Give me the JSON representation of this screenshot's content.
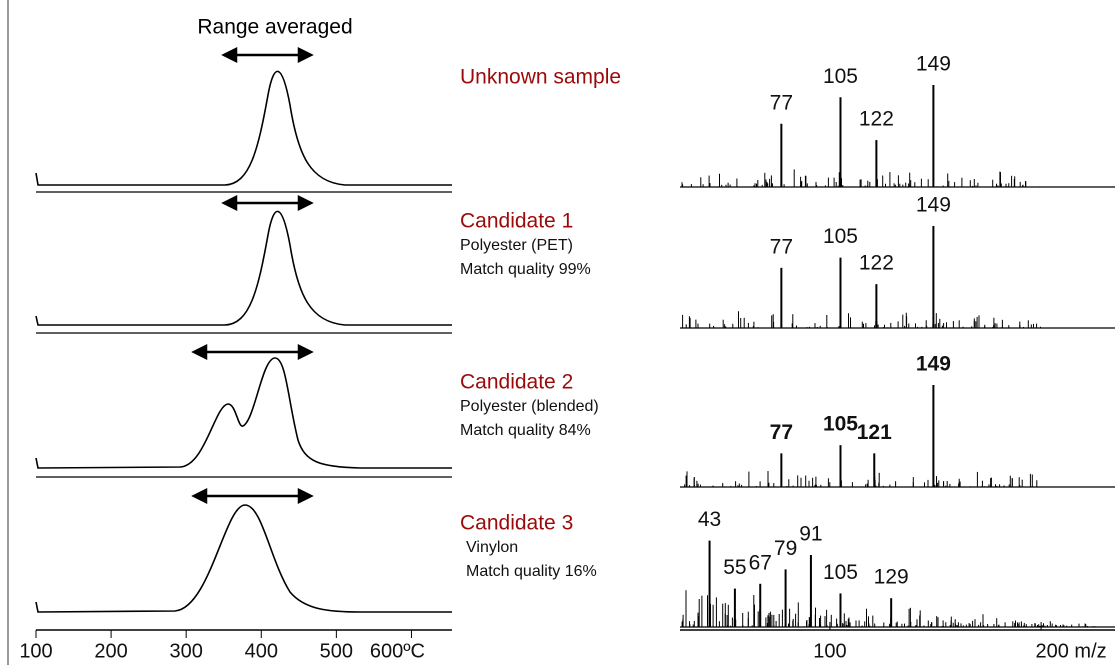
{
  "thermogram": {
    "title": "Range averaged",
    "xlim": [
      100,
      654
    ],
    "xticks": [
      100,
      200,
      300,
      400,
      500,
      {
        "value": 600,
        "label": "600ºC"
      }
    ]
  },
  "spectrum": {
    "xlim": [
      29,
      235
    ],
    "xticks": [
      100,
      {
        "value": 200,
        "label": "200 m/z"
      }
    ]
  },
  "panels": [
    {
      "title": "Unknown sample",
      "lines": [],
      "peaks": [
        {
          "mz": 77,
          "intensity": 62
        },
        {
          "mz": 105,
          "intensity": 88
        },
        {
          "mz": 122,
          "intensity": 46
        },
        {
          "mz": 149,
          "intensity": 100
        }
      ],
      "bold": false
    },
    {
      "title": "Candidate 1",
      "lines": [
        "Polyester (PET)",
        "Match quality 99%"
      ],
      "peaks": [
        {
          "mz": 77,
          "intensity": 59
        },
        {
          "mz": 105,
          "intensity": 69
        },
        {
          "mz": 122,
          "intensity": 43
        },
        {
          "mz": 149,
          "intensity": 100
        }
      ],
      "bold": false
    },
    {
      "title": "Candidate 2",
      "lines": [
        "Polyester (blended)",
        "Match quality 84%"
      ],
      "peaks": [
        {
          "mz": 77,
          "intensity": 33
        },
        {
          "mz": 105,
          "intensity": 41
        },
        {
          "mz": 121,
          "intensity": 33
        },
        {
          "mz": 149,
          "intensity": 100
        }
      ],
      "bold": true
    },
    {
      "title": "Candidate 3",
      "lines": [
        "Vinylon",
        "Match quality 16%"
      ],
      "peaks": [
        {
          "mz": 43,
          "intensity": 90
        },
        {
          "mz": 55,
          "intensity": 40
        },
        {
          "mz": 67,
          "intensity": 45
        },
        {
          "mz": 79,
          "intensity": 60
        },
        {
          "mz": 91,
          "intensity": 75
        },
        {
          "mz": 105,
          "intensity": 35
        },
        {
          "mz": 129,
          "intensity": 30
        }
      ],
      "bold": false
    }
  ]
}
